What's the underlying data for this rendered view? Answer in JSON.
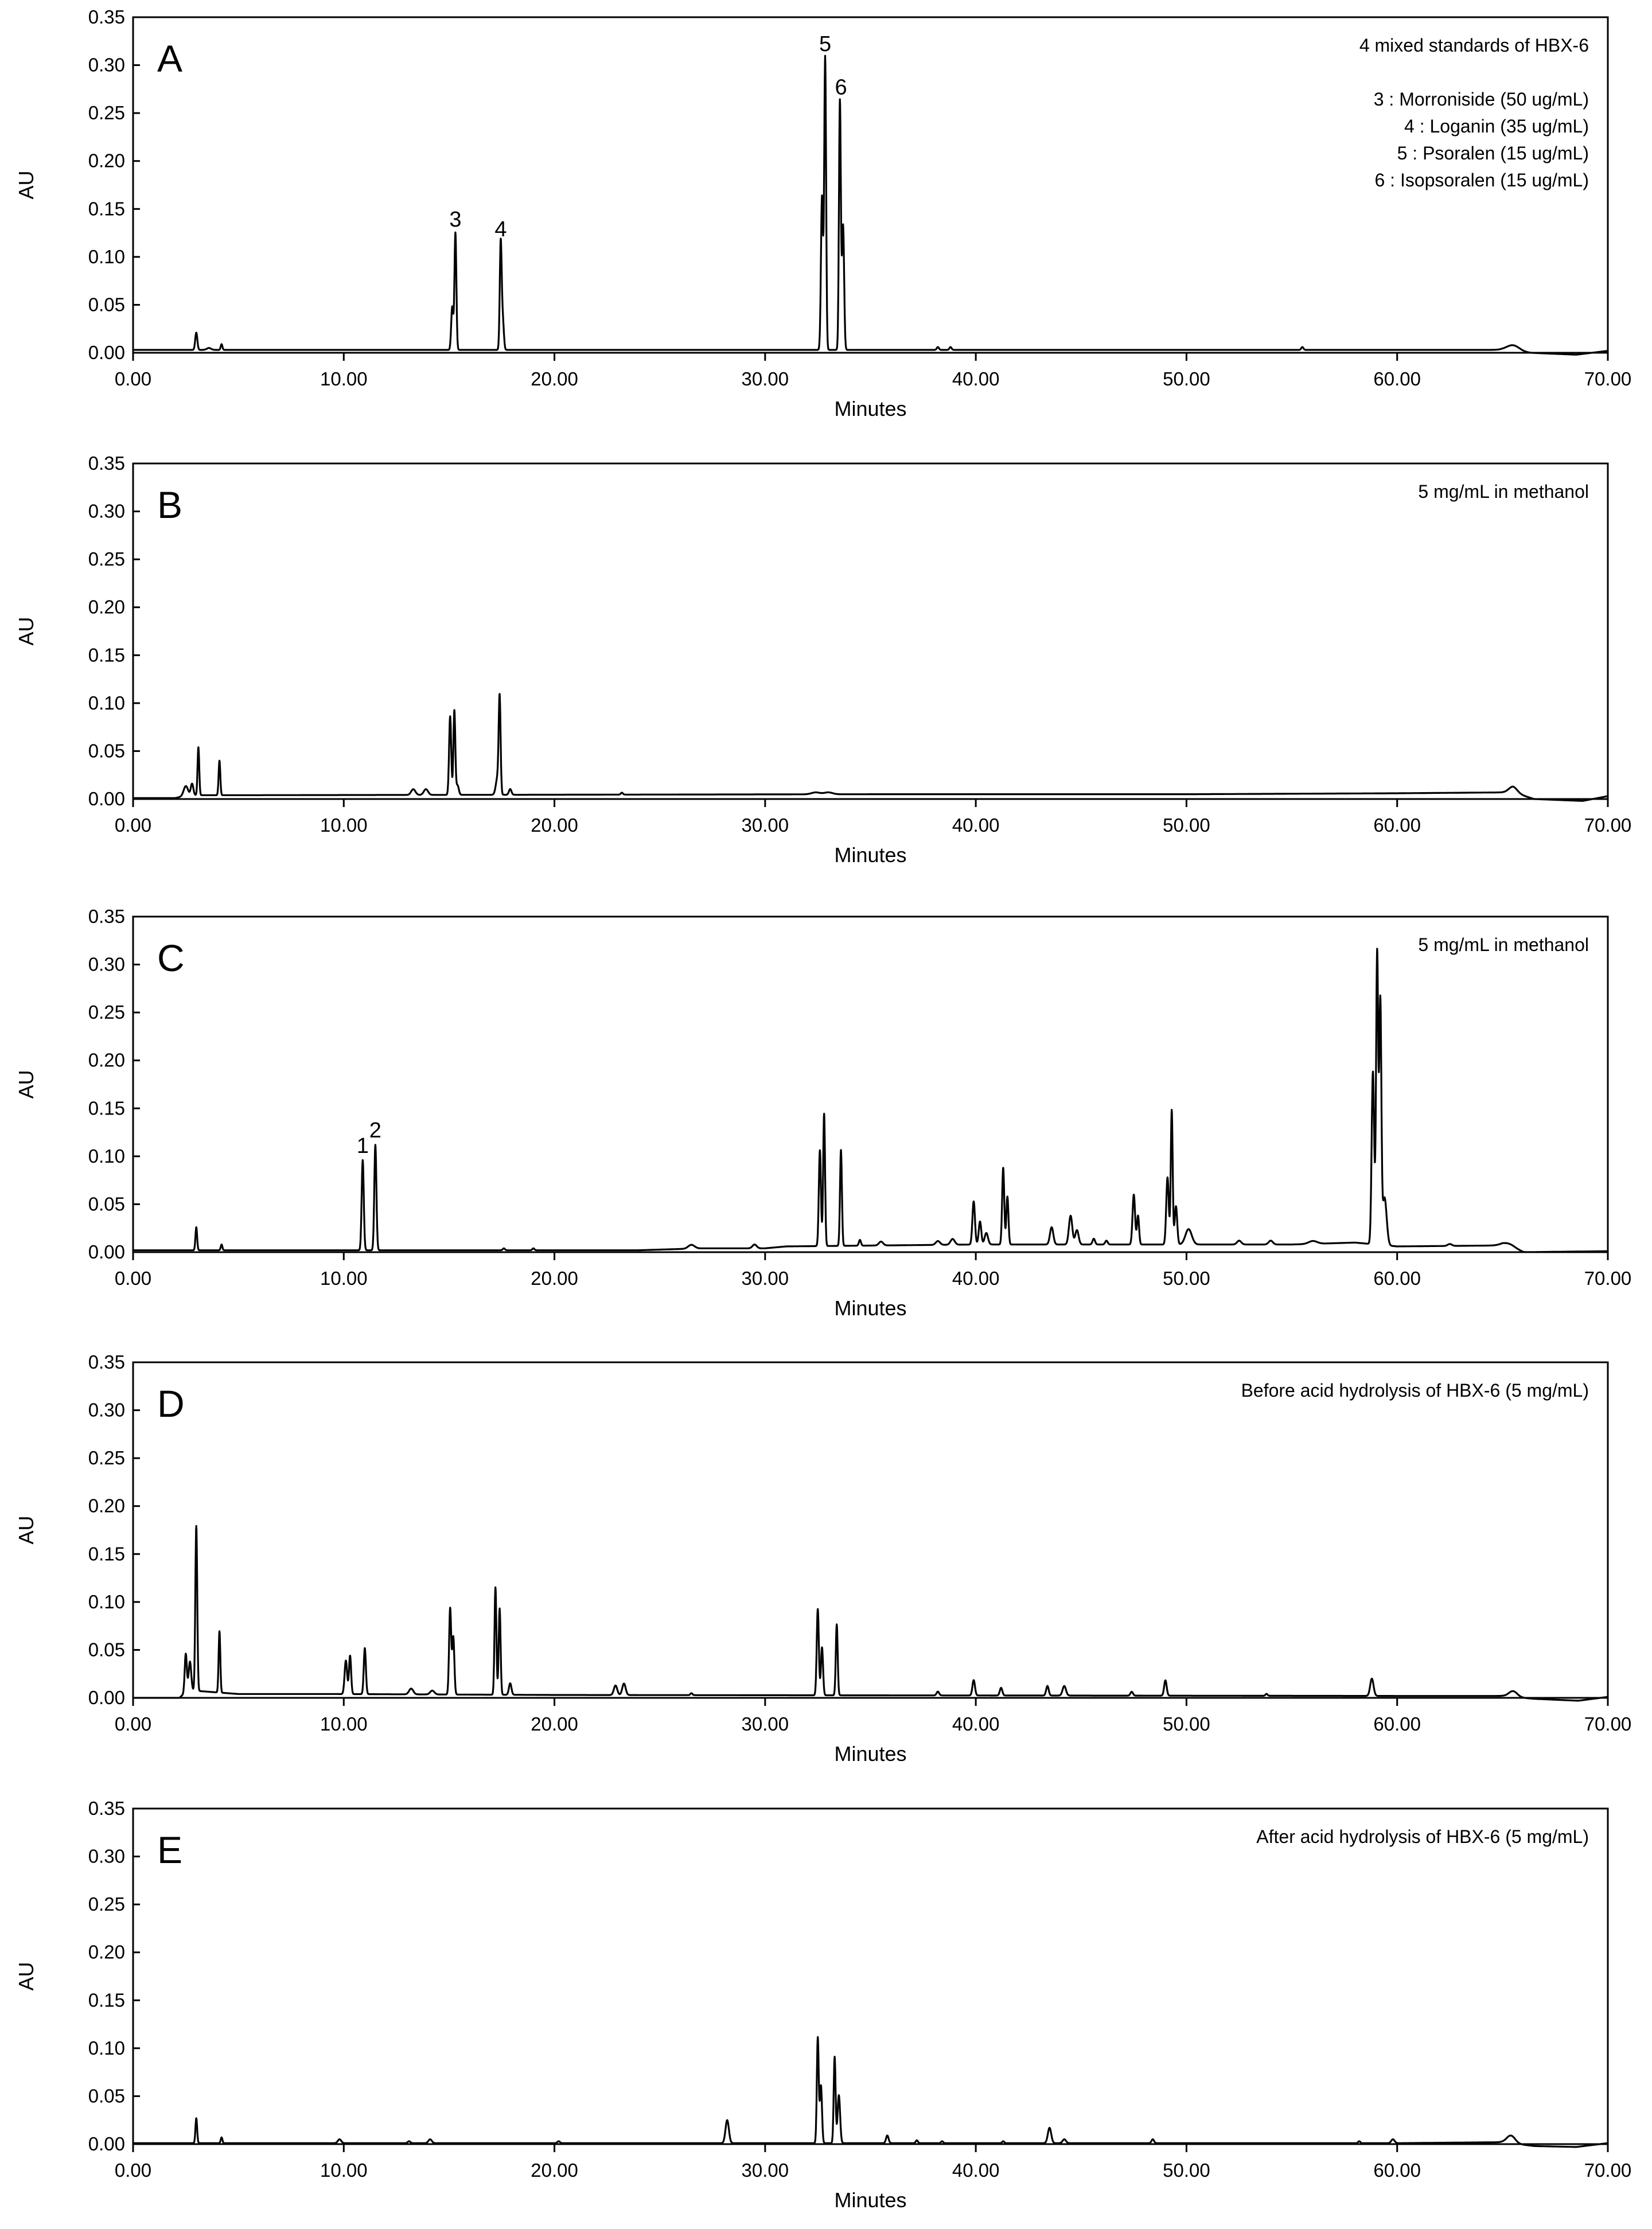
{
  "chart_data": [
    {
      "type": "line",
      "panel": "A",
      "annotations": [
        "4 mixed standards of HBX-6",
        "",
        "3 : Morroniside  (50 ug/mL)",
        "4 : Loganin  (35 ug/mL)",
        "5 : Psoralen (15 ug/mL)",
        "6 : Isopsoralen  (15 ug/mL)"
      ],
      "xlabel": "Minutes",
      "ylabel": "AU",
      "xlim": [
        0,
        70
      ],
      "ylim": [
        0,
        0.35
      ],
      "xticks": [
        "0.00",
        "10.00",
        "20.00",
        "30.00",
        "40.00",
        "50.00",
        "60.00",
        "70.00"
      ],
      "yticks": [
        "0.00",
        "0.05",
        "0.10",
        "0.15",
        "0.20",
        "0.25",
        "0.30",
        "0.35"
      ],
      "baseline": [
        [
          0,
          0.003
        ],
        [
          65,
          0.003
        ],
        [
          66.3,
          0.0
        ],
        [
          68.5,
          -0.002
        ],
        [
          70,
          0.002
        ]
      ],
      "peaks": [
        [
          3.0,
          0.018,
          0.05
        ],
        [
          3.6,
          0.002,
          0.1
        ],
        [
          4.2,
          0.006,
          0.04
        ],
        [
          15.15,
          0.045,
          0.05
        ],
        [
          15.3,
          0.122,
          0.045
        ],
        [
          17.45,
          0.112,
          0.045
        ],
        [
          17.55,
          0.03,
          0.05
        ],
        [
          32.7,
          0.16,
          0.05
        ],
        [
          32.85,
          0.305,
          0.045
        ],
        [
          33.55,
          0.26,
          0.045
        ],
        [
          33.7,
          0.13,
          0.05
        ],
        [
          38.2,
          0.003,
          0.05
        ],
        [
          38.8,
          0.003,
          0.05
        ],
        [
          55.5,
          0.003,
          0.05
        ],
        [
          65.5,
          0.006,
          0.3
        ]
      ],
      "peak_labels": [
        {
          "text": "3",
          "x": 15.3,
          "y": 0.122
        },
        {
          "text": "4",
          "x": 17.45,
          "y": 0.112
        },
        {
          "text": "5",
          "x": 32.85,
          "y": 0.305
        },
        {
          "text": "6",
          "x": 33.6,
          "y": 0.26
        }
      ]
    },
    {
      "type": "line",
      "panel": "B",
      "annotations": [
        "5 mg/mL in methanol"
      ],
      "xlabel": "Minutes",
      "ylabel": "AU",
      "xlim": [
        0,
        70
      ],
      "ylim": [
        0,
        0.35
      ],
      "xticks": [
        "0.00",
        "10.00",
        "20.00",
        "30.00",
        "40.00",
        "50.00",
        "60.00",
        "70.00"
      ],
      "yticks": [
        "0.00",
        "0.05",
        "0.10",
        "0.15",
        "0.20",
        "0.25",
        "0.30",
        "0.35"
      ],
      "baseline": [
        [
          0,
          0.001
        ],
        [
          2.0,
          0.001
        ],
        [
          2.6,
          0.004
        ],
        [
          5.0,
          0.004
        ],
        [
          35.0,
          0.005
        ],
        [
          50.0,
          0.005
        ],
        [
          60.0,
          0.006
        ],
        [
          65.5,
          0.007
        ],
        [
          66.5,
          0.0
        ],
        [
          68.8,
          -0.002
        ],
        [
          70,
          0.003
        ]
      ],
      "peaks": [
        [
          2.5,
          0.01,
          0.1
        ],
        [
          2.8,
          0.012,
          0.06
        ],
        [
          3.1,
          0.05,
          0.04
        ],
        [
          4.1,
          0.036,
          0.04
        ],
        [
          13.3,
          0.006,
          0.1
        ],
        [
          13.9,
          0.006,
          0.1
        ],
        [
          15.05,
          0.082,
          0.05
        ],
        [
          15.25,
          0.088,
          0.045
        ],
        [
          15.4,
          0.01,
          0.06
        ],
        [
          17.4,
          0.097,
          0.045
        ],
        [
          17.3,
          0.018,
          0.08
        ],
        [
          17.9,
          0.006,
          0.06
        ],
        [
          23.2,
          0.002,
          0.05
        ],
        [
          32.4,
          0.002,
          0.2
        ],
        [
          33.0,
          0.002,
          0.2
        ],
        [
          65.5,
          0.006,
          0.2
        ]
      ],
      "peak_labels": []
    },
    {
      "type": "line",
      "panel": "C",
      "annotations": [
        "5 mg/mL in methanol"
      ],
      "xlabel": "Minutes",
      "ylabel": "AU",
      "xlim": [
        0,
        70
      ],
      "ylim": [
        0,
        0.35
      ],
      "xticks": [
        "0.00",
        "10.00",
        "20.00",
        "30.00",
        "40.00",
        "50.00",
        "60.00",
        "70.00"
      ],
      "yticks": [
        "0.00",
        "0.05",
        "0.10",
        "0.15",
        "0.20",
        "0.25",
        "0.30",
        "0.35"
      ],
      "baseline": [
        [
          0,
          0.002
        ],
        [
          24.0,
          0.002
        ],
        [
          27.0,
          0.004
        ],
        [
          30.0,
          0.004
        ],
        [
          31.0,
          0.006
        ],
        [
          40.0,
          0.008
        ],
        [
          55.0,
          0.008
        ],
        [
          58.0,
          0.01
        ],
        [
          60.0,
          0.006
        ],
        [
          65.0,
          0.007
        ],
        [
          66.0,
          0.0
        ],
        [
          70,
          0.001
        ]
      ],
      "peaks": [
        [
          3.0,
          0.024,
          0.04
        ],
        [
          4.2,
          0.006,
          0.04
        ],
        [
          10.9,
          0.094,
          0.05
        ],
        [
          11.5,
          0.11,
          0.05
        ],
        [
          17.6,
          0.002,
          0.05
        ],
        [
          19.0,
          0.002,
          0.05
        ],
        [
          26.5,
          0.004,
          0.15
        ],
        [
          29.5,
          0.004,
          0.1
        ],
        [
          32.6,
          0.1,
          0.05
        ],
        [
          32.8,
          0.138,
          0.045
        ],
        [
          33.6,
          0.1,
          0.045
        ],
        [
          34.5,
          0.006,
          0.05
        ],
        [
          35.5,
          0.004,
          0.1
        ],
        [
          38.2,
          0.004,
          0.1
        ],
        [
          38.9,
          0.006,
          0.1
        ],
        [
          39.9,
          0.045,
          0.06
        ],
        [
          40.2,
          0.024,
          0.06
        ],
        [
          40.5,
          0.012,
          0.08
        ],
        [
          41.3,
          0.08,
          0.05
        ],
        [
          41.5,
          0.05,
          0.05
        ],
        [
          43.6,
          0.018,
          0.08
        ],
        [
          44.5,
          0.03,
          0.08
        ],
        [
          44.8,
          0.015,
          0.08
        ],
        [
          45.6,
          0.006,
          0.06
        ],
        [
          46.2,
          0.004,
          0.06
        ],
        [
          47.5,
          0.052,
          0.06
        ],
        [
          47.7,
          0.03,
          0.05
        ],
        [
          49.1,
          0.07,
          0.06
        ],
        [
          49.3,
          0.14,
          0.045
        ],
        [
          49.5,
          0.04,
          0.06
        ],
        [
          50.1,
          0.016,
          0.15
        ],
        [
          52.5,
          0.004,
          0.1
        ],
        [
          54.0,
          0.004,
          0.1
        ],
        [
          56.0,
          0.003,
          0.2
        ],
        [
          58.85,
          0.18,
          0.06
        ],
        [
          59.05,
          0.305,
          0.05
        ],
        [
          59.2,
          0.25,
          0.05
        ],
        [
          59.4,
          0.05,
          0.1
        ],
        [
          62.5,
          0.002,
          0.1
        ],
        [
          65.3,
          0.004,
          0.3
        ]
      ],
      "peak_labels": [
        {
          "text": "1",
          "x": 10.9,
          "y": 0.094
        },
        {
          "text": "2",
          "x": 11.5,
          "y": 0.11
        }
      ]
    },
    {
      "type": "line",
      "panel": "D",
      "annotations": [
        "Before acid hydrolysis of HBX-6 (5 mg/mL)"
      ],
      "xlabel": "Minutes",
      "ylabel": "AU",
      "xlim": [
        0,
        70
      ],
      "ylim": [
        0,
        0.35
      ],
      "xticks": [
        "0.00",
        "10.00",
        "20.00",
        "30.00",
        "40.00",
        "50.00",
        "60.00",
        "70.00"
      ],
      "yticks": [
        "0.00",
        "0.05",
        "0.10",
        "0.15",
        "0.20",
        "0.25",
        "0.30",
        "0.35"
      ],
      "baseline": [
        [
          0,
          0.0
        ],
        [
          2.2,
          0.0
        ],
        [
          2.6,
          0.008
        ],
        [
          5.0,
          0.004
        ],
        [
          9.5,
          0.004
        ],
        [
          20.0,
          0.003
        ],
        [
          60.0,
          0.002
        ],
        [
          65.0,
          0.002
        ],
        [
          66.5,
          -0.001
        ],
        [
          68.6,
          -0.003
        ],
        [
          70,
          0.001
        ]
      ],
      "peaks": [
        [
          2.5,
          0.04,
          0.05
        ],
        [
          2.7,
          0.03,
          0.06
        ],
        [
          3.0,
          0.172,
          0.045
        ],
        [
          4.1,
          0.064,
          0.04
        ],
        [
          10.1,
          0.035,
          0.06
        ],
        [
          10.3,
          0.04,
          0.05
        ],
        [
          11.0,
          0.048,
          0.05
        ],
        [
          13.2,
          0.006,
          0.1
        ],
        [
          14.2,
          0.004,
          0.1
        ],
        [
          15.05,
          0.09,
          0.05
        ],
        [
          15.2,
          0.06,
          0.05
        ],
        [
          17.2,
          0.112,
          0.045
        ],
        [
          17.4,
          0.09,
          0.045
        ],
        [
          17.9,
          0.012,
          0.06
        ],
        [
          22.9,
          0.01,
          0.08
        ],
        [
          23.3,
          0.012,
          0.08
        ],
        [
          26.5,
          0.002,
          0.05
        ],
        [
          32.5,
          0.09,
          0.05
        ],
        [
          32.7,
          0.05,
          0.05
        ],
        [
          33.4,
          0.074,
          0.045
        ],
        [
          38.2,
          0.004,
          0.06
        ],
        [
          39.9,
          0.016,
          0.06
        ],
        [
          41.2,
          0.008,
          0.06
        ],
        [
          43.4,
          0.01,
          0.06
        ],
        [
          44.2,
          0.01,
          0.08
        ],
        [
          47.4,
          0.004,
          0.06
        ],
        [
          49.0,
          0.016,
          0.06
        ],
        [
          53.8,
          0.002,
          0.05
        ],
        [
          58.8,
          0.018,
          0.08
        ],
        [
          65.5,
          0.006,
          0.2
        ]
      ],
      "peak_labels": []
    },
    {
      "type": "line",
      "panel": "E",
      "annotations": [
        "After acid hydrolysis of HBX-6 (5 mg/mL)"
      ],
      "xlabel": "Minutes",
      "ylabel": "AU",
      "xlim": [
        0,
        70
      ],
      "ylim": [
        0,
        0.35
      ],
      "xticks": [
        "0.00",
        "10.00",
        "20.00",
        "30.00",
        "40.00",
        "50.00",
        "60.00",
        "70.00"
      ],
      "yticks": [
        "0.00",
        "0.05",
        "0.10",
        "0.15",
        "0.20",
        "0.25",
        "0.30",
        "0.35"
      ],
      "baseline": [
        [
          0,
          0.001
        ],
        [
          20.0,
          0.001
        ],
        [
          60.0,
          0.001
        ],
        [
          65.0,
          0.002
        ],
        [
          66.5,
          -0.002
        ],
        [
          68.5,
          -0.003
        ],
        [
          70,
          0.001
        ]
      ],
      "peaks": [
        [
          3.0,
          0.026,
          0.04
        ],
        [
          4.2,
          0.006,
          0.04
        ],
        [
          9.8,
          0.004,
          0.08
        ],
        [
          13.1,
          0.002,
          0.06
        ],
        [
          14.1,
          0.004,
          0.08
        ],
        [
          20.2,
          0.002,
          0.06
        ],
        [
          28.2,
          0.024,
          0.08
        ],
        [
          32.5,
          0.11,
          0.045
        ],
        [
          32.65,
          0.06,
          0.05
        ],
        [
          33.3,
          0.09,
          0.045
        ],
        [
          33.5,
          0.05,
          0.06
        ],
        [
          35.8,
          0.008,
          0.06
        ],
        [
          37.2,
          0.003,
          0.05
        ],
        [
          38.4,
          0.002,
          0.05
        ],
        [
          41.3,
          0.002,
          0.05
        ],
        [
          43.5,
          0.016,
          0.08
        ],
        [
          44.2,
          0.004,
          0.08
        ],
        [
          48.4,
          0.004,
          0.06
        ],
        [
          58.2,
          0.002,
          0.05
        ],
        [
          59.8,
          0.004,
          0.08
        ],
        [
          65.4,
          0.008,
          0.2
        ]
      ],
      "peak_labels": []
    }
  ]
}
